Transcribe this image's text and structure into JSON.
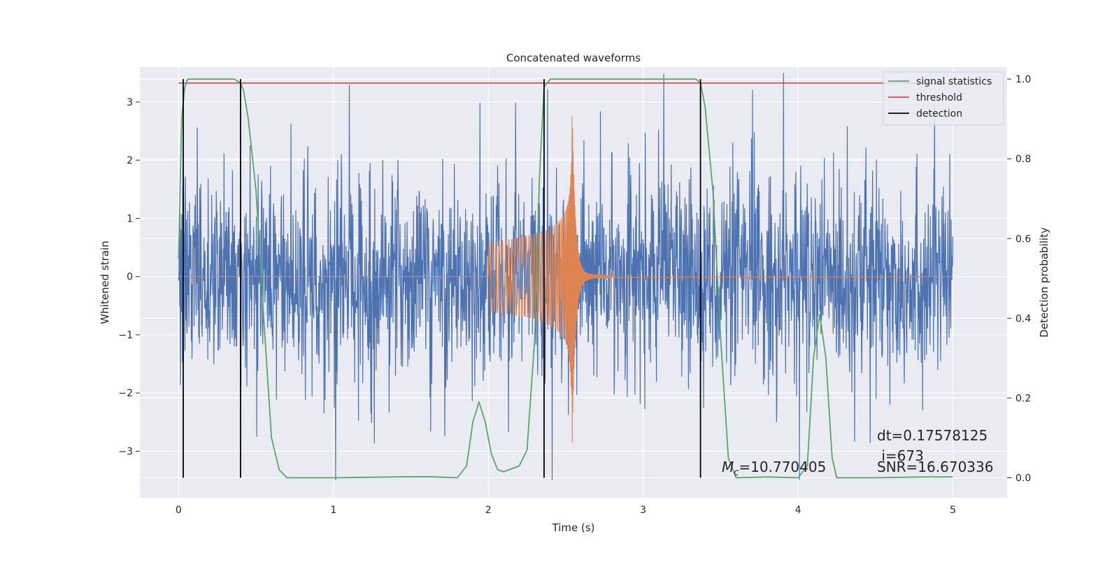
{
  "chart_data": {
    "type": "line",
    "title": "Concatenated waveforms",
    "xlabel": "Time (s)",
    "ylabel_left": "Whitened strain",
    "ylabel_right": "Detection probability",
    "xlim": [
      -0.25,
      5.35
    ],
    "ylim_left": [
      -3.8,
      3.6
    ],
    "ylim_right": [
      -0.05,
      1.03
    ],
    "x_ticks": [
      0,
      1,
      2,
      3,
      4,
      5
    ],
    "x_tick_labels": [
      "0",
      "1",
      "2",
      "3",
      "4",
      "5"
    ],
    "y_left_ticks": [
      -3,
      -2,
      -1,
      0,
      1,
      2,
      3
    ],
    "y_left_tick_labels": [
      "−3",
      "−2",
      "−1",
      "0",
      "1",
      "2",
      "3"
    ],
    "y_right_ticks": [
      0.0,
      0.2,
      0.4,
      0.6,
      0.8,
      1.0
    ],
    "y_right_tick_labels": [
      "0.0",
      "0.2",
      "0.4",
      "0.6",
      "0.8",
      "1.0"
    ],
    "grid": true,
    "legend_position": "top-right",
    "legend": [
      {
        "label": "signal statistics",
        "color": "#55a868"
      },
      {
        "label": "threshold",
        "color": "#c44e52"
      },
      {
        "label": "detection",
        "color": "#000000"
      }
    ],
    "colors": {
      "noise": "#4c72b0",
      "template": "#dd8452",
      "signal_statistics": "#55a868",
      "threshold": "#c44e52",
      "detection": "#000000",
      "background": "#eaeaf2"
    },
    "noise_series": {
      "x_range": [
        0,
        5
      ],
      "typical_abs_amplitude": 1.5,
      "peak_abs_amplitude": 3.5
    },
    "template_series": {
      "x_start": 2.0,
      "x_merger": 2.54,
      "x_ringdown_end": 2.8,
      "amplitude_start": 0.6,
      "amplitude_peak": 3.1
    },
    "threshold_value": 0.99,
    "detections_x": [
      0.03,
      0.4,
      2.36,
      3.37
    ],
    "signal_statistics": {
      "x": [
        0,
        0.02,
        0.04,
        0.06,
        0.1,
        0.2,
        0.3,
        0.36,
        0.4,
        0.42,
        0.45,
        0.5,
        0.55,
        0.6,
        0.65,
        0.7,
        1.0,
        1.4,
        1.6,
        1.8,
        1.86,
        1.9,
        1.94,
        1.98,
        2.02,
        2.06,
        2.1,
        2.2,
        2.25,
        2.3,
        2.33,
        2.36,
        2.4,
        2.45,
        2.5,
        3.0,
        3.34,
        3.37,
        3.4,
        3.45,
        3.5,
        3.55,
        3.6,
        3.8,
        4.0,
        4.06,
        4.1,
        4.14,
        4.18,
        4.22,
        4.25,
        4.3,
        4.5,
        4.8,
        5.0
      ],
      "y": [
        0.55,
        0.9,
        0.98,
        1.0,
        1.0,
        1.0,
        1.0,
        1.0,
        0.99,
        0.97,
        0.9,
        0.72,
        0.4,
        0.1,
        0.02,
        0.0,
        0.0,
        0.002,
        0.003,
        0.0,
        0.03,
        0.14,
        0.19,
        0.14,
        0.06,
        0.02,
        0.015,
        0.03,
        0.07,
        0.35,
        0.75,
        0.98,
        1.0,
        1.0,
        1.0,
        1.0,
        1.0,
        0.99,
        0.93,
        0.72,
        0.35,
        0.05,
        0.0,
        0.002,
        0.0,
        0.03,
        0.3,
        0.41,
        0.3,
        0.05,
        0.0,
        0.0,
        0.0,
        0.002,
        0.002
      ]
    },
    "annotations": {
      "mc_label": "M",
      "mc_sub": "c",
      "mc_value": "=10.770405",
      "dt": "dt=0.17578125",
      "i": " i=673",
      "snr": "SNR=16.670336"
    }
  }
}
